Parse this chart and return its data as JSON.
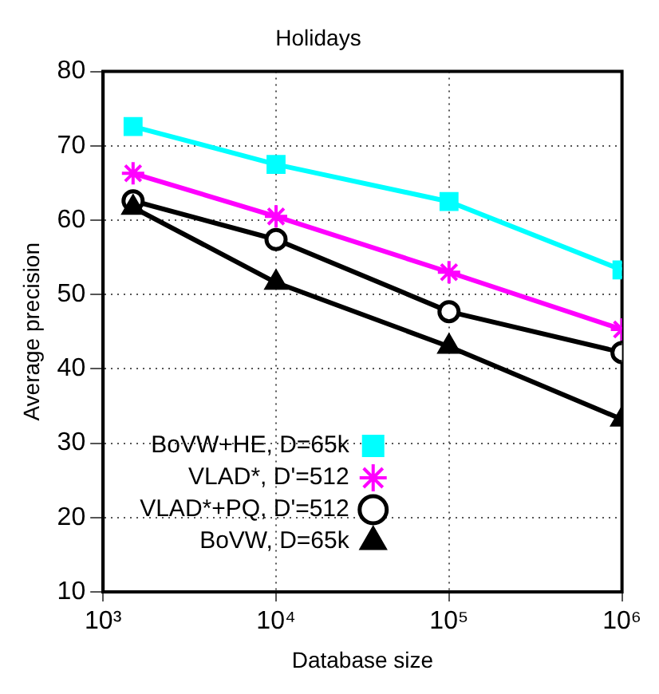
{
  "chart_data": {
    "type": "line",
    "title": "Holidays",
    "xlabel": "Database size",
    "ylabel": "Average precision",
    "x": [
      1491,
      10000,
      100000,
      1000000
    ],
    "log": "x",
    "xlim": [
      1000,
      1000000
    ],
    "xticks": [
      {
        "value": 1000,
        "label": "10³"
      },
      {
        "value": 10000,
        "label": "10⁴"
      },
      {
        "value": 100000,
        "label": "10⁵"
      },
      {
        "value": 1000000,
        "label": "10⁶"
      }
    ],
    "ylim": [
      10,
      80
    ],
    "yticks": [
      10,
      20,
      30,
      40,
      50,
      60,
      70,
      80
    ],
    "grid": true,
    "legend": "bottom left",
    "line_style": "solid",
    "series": [
      {
        "name": "BoVW+HE, D=65k",
        "color": "#00ffff",
        "marker": "square",
        "values": [
          72.6,
          67.5,
          62.5,
          53.3
        ]
      },
      {
        "name": "VLAD*, D'=512",
        "color": "#ff00ff",
        "marker": "cross",
        "values": [
          66.3,
          60.5,
          53.0,
          45.3
        ]
      },
      {
        "name": "VLAD*+PQ, D'=512",
        "color": "#000000",
        "marker": "circle",
        "values": [
          62.6,
          57.4,
          47.7,
          42.2
        ]
      },
      {
        "name": "BoVW, D=65k",
        "color": "#000000",
        "marker": "triangle",
        "values": [
          61.7,
          51.6,
          43.0,
          33.2
        ]
      }
    ]
  }
}
